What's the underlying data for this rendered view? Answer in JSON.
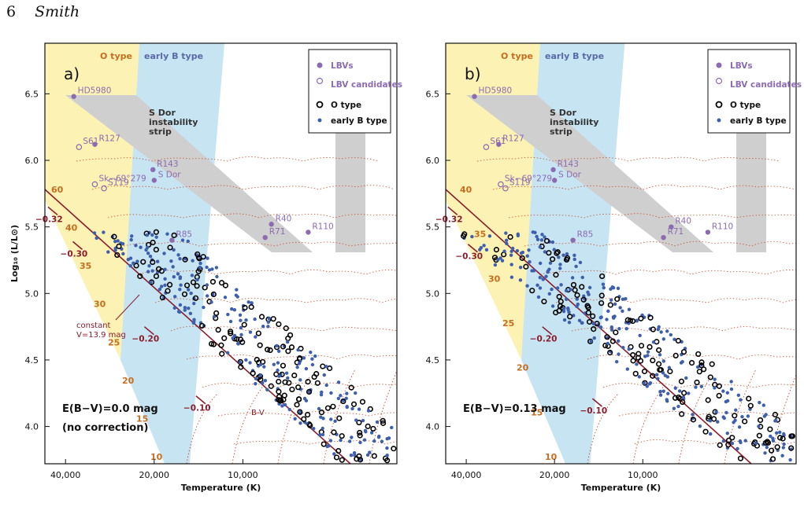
{
  "page": {
    "page_number": "6",
    "running_head": "Smith"
  },
  "chart_data": [
    {
      "type": "scatter",
      "panel_label": "a)",
      "xlabel": "Temperature (K)",
      "ylabel": "Log₁₀ (L/L⊙)",
      "x_axis_reversed": true,
      "xlim": [
        47000,
        3000
      ],
      "ylim": [
        3.72,
        6.88
      ],
      "xticks": [
        40000,
        20000,
        10000
      ],
      "xtick_labels": [
        "40,000",
        "20,000",
        "10,000"
      ],
      "yticks": [
        4.0,
        4.5,
        5.0,
        5.5,
        6.0,
        6.5
      ],
      "ytick_labels": [
        "4.0",
        "4.5",
        "5.0",
        "5.5",
        "6.0",
        "6.5"
      ],
      "grid": false,
      "reddening_label": "E(B−V)=0.0 mag",
      "note": "(no correction)",
      "region_labels": {
        "o_type": "O type",
        "early_b_type": "early B type",
        "sdor_strip": [
          "S Dor",
          "instability",
          "strip"
        ]
      },
      "legend": {
        "placement": "top-right",
        "entries": [
          "LBVs",
          "LBV candidates",
          "O type",
          "early B type"
        ]
      },
      "constant_v_label": [
        "constant",
        "V=13.9 mag"
      ],
      "bv_label": "B-V",
      "colors": {
        "o_region": "#fbf2b4",
        "b_region": "#c6e4f1",
        "strip": "#cfcfcf",
        "lbv": "#8c6bb1",
        "btype": "#3e5fad",
        "otype": "#000000",
        "track": "#c44a2a",
        "line": "#8b1c2c",
        "mass": "#c76d20"
      },
      "mass_labels": [
        "60",
        "40",
        "35",
        "30",
        "25",
        "20",
        "15",
        "10"
      ],
      "bv_ticks": [
        {
          "label": "−0.32",
          "x": 44200,
          "y": 5.62
        },
        {
          "label": "−0.30",
          "x": 36400,
          "y": 5.36
        },
        {
          "label": "−0.20",
          "x": 20800,
          "y": 4.72
        },
        {
          "label": "−0.10",
          "x": 13900,
          "y": 4.2
        }
      ],
      "lbv_stars": [
        {
          "name": "HD5980",
          "x": 37500,
          "y": 6.48,
          "type": "lbv"
        },
        {
          "name": "S61",
          "x": 36000,
          "y": 6.1,
          "type": "candidate"
        },
        {
          "name": "R127",
          "x": 31800,
          "y": 6.12,
          "type": "lbv"
        },
        {
          "name": "R143",
          "x": 20200,
          "y": 5.93,
          "type": "lbv"
        },
        {
          "name": "S Dor",
          "x": 20000,
          "y": 5.85,
          "type": "lbv"
        },
        {
          "name": "Sk−69°279",
          "x": 31800,
          "y": 5.82,
          "type": "candidate"
        },
        {
          "name": "S119",
          "x": 29600,
          "y": 5.79,
          "type": "candidate"
        },
        {
          "name": "R85",
          "x": 17400,
          "y": 5.4,
          "type": "lbv"
        },
        {
          "name": "R40",
          "x": 8000,
          "y": 5.52,
          "type": "lbv"
        },
        {
          "name": "R71",
          "x": 8400,
          "y": 5.42,
          "type": "lbv"
        },
        {
          "name": "R110",
          "x": 6000,
          "y": 5.46,
          "type": "lbv"
        }
      ]
    },
    {
      "type": "scatter",
      "panel_label": "b)",
      "xlabel": "Temperature (K)",
      "ylabel": "",
      "x_axis_reversed": true,
      "xlim": [
        47000,
        3000
      ],
      "ylim": [
        3.72,
        6.88
      ],
      "xticks": [
        40000,
        20000,
        10000
      ],
      "xtick_labels": [
        "40,000",
        "20,000",
        "10,000"
      ],
      "yticks": [
        4.0,
        4.5,
        5.0,
        5.5,
        6.0,
        6.5
      ],
      "ytick_labels": [
        "4.0",
        "4.5",
        "5.0",
        "5.5",
        "6.0",
        "6.5"
      ],
      "grid": false,
      "reddening_label": "E(B−V)=0.13 mag",
      "region_labels": {
        "o_type": "O type",
        "early_b_type": "early B type",
        "sdor_strip": [
          "S Dor",
          "instability",
          "strip"
        ]
      },
      "legend": {
        "placement": "top-right",
        "entries": [
          "LBVs",
          "LBV candidates",
          "O type",
          "early B type"
        ]
      },
      "colors": {
        "o_region": "#fbf2b4",
        "b_region": "#c6e4f1",
        "strip": "#cfcfcf",
        "lbv": "#8c6bb1",
        "btype": "#3e5fad",
        "otype": "#000000",
        "track": "#c44a2a",
        "line": "#8b1c2c",
        "mass": "#c76d20"
      },
      "mass_labels": [
        "40",
        "35",
        "30",
        "25",
        "20",
        "15",
        "10"
      ],
      "bv_ticks": [
        {
          "label": "−0.32",
          "x": 44500,
          "y": 5.62
        },
        {
          "label": "−0.30",
          "x": 38000,
          "y": 5.34
        },
        {
          "label": "−0.20",
          "x": 21200,
          "y": 4.72
        },
        {
          "label": "−0.10",
          "x": 14300,
          "y": 4.18
        }
      ],
      "lbv_stars": [
        {
          "name": "HD5980",
          "x": 37500,
          "y": 6.48,
          "type": "lbv"
        },
        {
          "name": "S61",
          "x": 34200,
          "y": 6.1,
          "type": "candidate"
        },
        {
          "name": "R127",
          "x": 31000,
          "y": 6.12,
          "type": "lbv"
        },
        {
          "name": "R143",
          "x": 20200,
          "y": 5.93,
          "type": "lbv"
        },
        {
          "name": "S Dor",
          "x": 20000,
          "y": 5.85,
          "type": "lbv"
        },
        {
          "name": "Sk−69°279",
          "x": 30500,
          "y": 5.82,
          "type": "candidate"
        },
        {
          "name": "S119",
          "x": 29400,
          "y": 5.79,
          "type": "candidate"
        },
        {
          "name": "R85",
          "x": 17300,
          "y": 5.4,
          "type": "lbv"
        },
        {
          "name": "R40",
          "x": 8000,
          "y": 5.5,
          "type": "lbv"
        },
        {
          "name": "R71",
          "x": 8500,
          "y": 5.42,
          "type": "lbv"
        },
        {
          "name": "R110",
          "x": 6000,
          "y": 5.46,
          "type": "lbv"
        }
      ]
    }
  ]
}
